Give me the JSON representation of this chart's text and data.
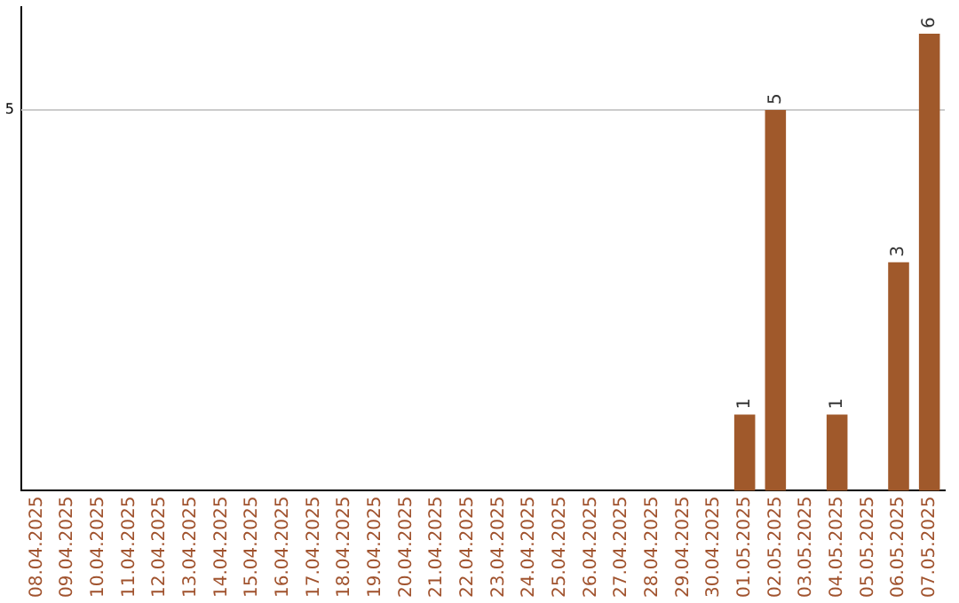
{
  "chart_data": {
    "type": "bar",
    "categories": [
      "08.04.2025",
      "09.04.2025",
      "10.04.2025",
      "11.04.2025",
      "12.04.2025",
      "13.04.2025",
      "14.04.2025",
      "15.04.2025",
      "16.04.2025",
      "17.04.2025",
      "18.04.2025",
      "19.04.2025",
      "20.04.2025",
      "21.04.2025",
      "22.04.2025",
      "23.04.2025",
      "24.04.2025",
      "25.04.2025",
      "26.04.2025",
      "27.04.2025",
      "28.04.2025",
      "29.04.2025",
      "30.04.2025",
      "01.05.2025",
      "02.05.2025",
      "03.05.2025",
      "04.05.2025",
      "05.05.2025",
      "06.05.2025",
      "07.05.2025"
    ],
    "values": [
      null,
      null,
      null,
      null,
      null,
      null,
      null,
      null,
      null,
      null,
      null,
      null,
      null,
      null,
      null,
      null,
      null,
      null,
      null,
      null,
      null,
      null,
      null,
      1,
      5,
      null,
      1,
      null,
      3,
      6
    ],
    "data_labels": true,
    "color": "#a0592b",
    "ylim": [
      0,
      6.35
    ],
    "ref_lines": [
      {
        "axis": "y",
        "value": 5,
        "label": "5",
        "color": "#cccccc"
      }
    ]
  }
}
